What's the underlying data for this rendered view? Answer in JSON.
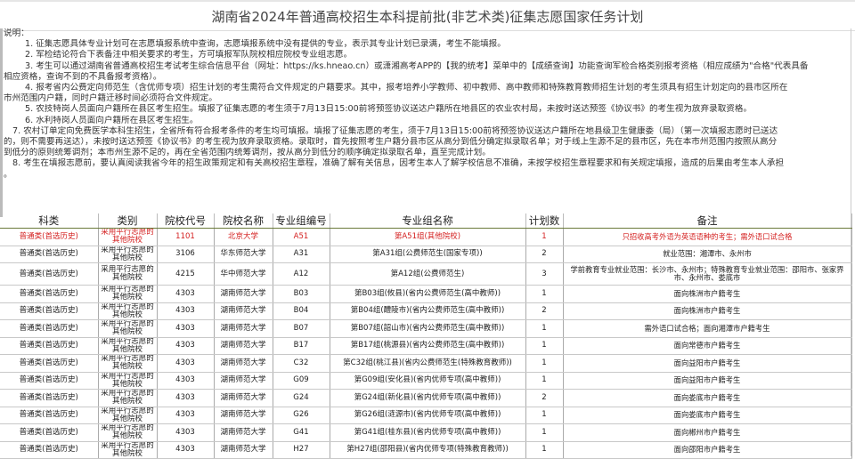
{
  "title": "湖南省2024年普通高校招生本科提前批(非艺术类)征集志愿国家任务计划",
  "notes": {
    "heading": "说明：",
    "lines": [
      "1. 征集志愿具体专业计划可在志愿填报系统中查询，志愿填报系统中没有提供的专业，表示其专业计划已录满，考生不能填报。",
      "2. 军检结论符合下表备注中相关要求的考生，方可填报军队院校相应院校专业组志愿。",
      "3. 考生可以通过湖南省普通高校招生考试考生综合信息平台（网址：https://ks.hneao.cn）或潇湘高考APP的【我的统考】菜单中的【成绩查询】功能查询军检合格类别报考资格（相应成绩为\"合格\"代表具备",
      "相应资格，查询不到的不具备报考资格）。",
      "4. 报考省内公费定向师范生（含优师专项）招生计划的考生需符合文件规定的户籍要求。其中，报考培养小学教师、初中教师、高中教师和特殊教育教师招生计划的考生须具有招生计划定向的县市区所在",
      "市州范围内户籍，同时户籍迁移时间必须符合文件规定。",
      "5. 农技特岗人员面向户籍所在县区考生招生。填报了征集志愿的考生须于7月13日15:00前将预签协议送达户籍所在地县区的农业农村局，未按时送达预签《协议书》的考生视为放弃录取资格。",
      "6. 水利特岗人员面向户籍所在县区考生招生。",
      "7. 农村订单定向免费医学本科生招生，全省所有符合报考条件的考生均可填报。填报了征集志愿的考生，须于7月13日15:00前将预签协议送达户籍所在地县级卫生健康委（局）（第一次填报志愿时已送达",
      "的，则不需要再送达），未按时送达预签《协议书》的考生视为放弃录取资格。录取时，首先按照考生户籍分县市区从高分到低分确定拟录取名单；对于线上生源不足的县市区，先在本市州范围内按照从高分",
      "到低分的原则统筹调剂；本市州生源不足的，再在全省范围内统筹调剂，按从高分到低分的顺序确定拟录取名单，直至完成计划。",
      "8. 考生在填报志愿前，要认真阅读我省今年的招生政策规定和有关高校招生章程，准确了解有关信息，因考生本人了解学校信息不准确，未按学校招生章程要求和有关规定填报，造成的后果由考生本人承担",
      "。"
    ]
  },
  "table": {
    "headers": [
      "科类",
      "类别",
      "院校代号",
      "院校名称",
      "专业组编号",
      "专业组名称",
      "计划数",
      "备注"
    ],
    "highlight_color": "#d42020",
    "rows": [
      [
        "普通类(首选历史)",
        "采用平行志愿的其他院校",
        "1101",
        "北京大学",
        "A51",
        "第A51组(其他院校)",
        "1",
        "只招收高考外语为英语语种的考生；需外语口试合格"
      ],
      [
        "普通类(首选历史)",
        "采用平行志愿的其他院校",
        "3106",
        "华东师范大学",
        "A31",
        "第A31组(公费师范生(国家专项))",
        "2",
        "就业范围：湘潭市、永州市"
      ],
      [
        "普通类(首选历史)",
        "采用平行志愿的其他院校",
        "4215",
        "华中师范大学",
        "A12",
        "第A12组(公费师范生)",
        "3",
        "学前教育专业就业范围：长沙市、永州市；特殊教育专业就业范围：邵阳市、张家界市、永州市、娄底市"
      ],
      [
        "普通类(首选历史)",
        "采用平行志愿的其他院校",
        "4303",
        "湖南师范大学",
        "B03",
        "第B03组(攸县)(省内公费师范生(高中教师))",
        "1",
        "面向株洲市户籍考生"
      ],
      [
        "普通类(首选历史)",
        "采用平行志愿的其他院校",
        "4303",
        "湖南师范大学",
        "B04",
        "第B04组(醴陵市)(省内公费师范生(高中教师))",
        "2",
        "面向株洲市户籍考生"
      ],
      [
        "普通类(首选历史)",
        "采用平行志愿的其他院校",
        "4303",
        "湖南师范大学",
        "B07",
        "第B07组(韶山市)(省内公费师范生(高中教师))",
        "1",
        "需外语口试合格；面向湘潭市户籍考生"
      ],
      [
        "普通类(首选历史)",
        "采用平行志愿的其他院校",
        "4303",
        "湖南师范大学",
        "B17",
        "第B17组(桃源县)(省内公费师范生(高中教师))",
        "1",
        "面向常德市户籍考生"
      ],
      [
        "普通类(首选历史)",
        "采用平行志愿的其他院校",
        "4303",
        "湖南师范大学",
        "C32",
        "第C32组(桃江县)(省内公费师范生(特殊教育教师))",
        "1",
        "面向益阳市户籍考生"
      ],
      [
        "普通类(首选历史)",
        "采用平行志愿的其他院校",
        "4303",
        "湖南师范大学",
        "G09",
        "第G09组(安化县)(省内优师专项(高中教师))",
        "1",
        "面向益阳市户籍考生"
      ],
      [
        "普通类(首选历史)",
        "采用平行志愿的其他院校",
        "4303",
        "湖南师范大学",
        "G24",
        "第G24组(新化县)(省内优师专项(高中教师))",
        "2",
        "面向娄底市户籍考生"
      ],
      [
        "普通类(首选历史)",
        "采用平行志愿的其他院校",
        "4303",
        "湖南师范大学",
        "G26",
        "第G26组(涟源市)(省内优师专项(高中教师))",
        "1",
        "面向娄底市户籍考生"
      ],
      [
        "普通类(首选历史)",
        "采用平行志愿的其他院校",
        "4303",
        "湖南师范大学",
        "G41",
        "第G41组(桂东县)(省内优师专项(高中教师))",
        "1",
        "面向郴州市户籍考生"
      ],
      [
        "普通类(首选历史)",
        "采用平行志愿的其他院校",
        "4303",
        "湖南师范大学",
        "H27",
        "第H27组(邵阳县)(省内优师专项(特殊教育教师))",
        "1",
        "面向邵阳市户籍考生"
      ]
    ]
  }
}
